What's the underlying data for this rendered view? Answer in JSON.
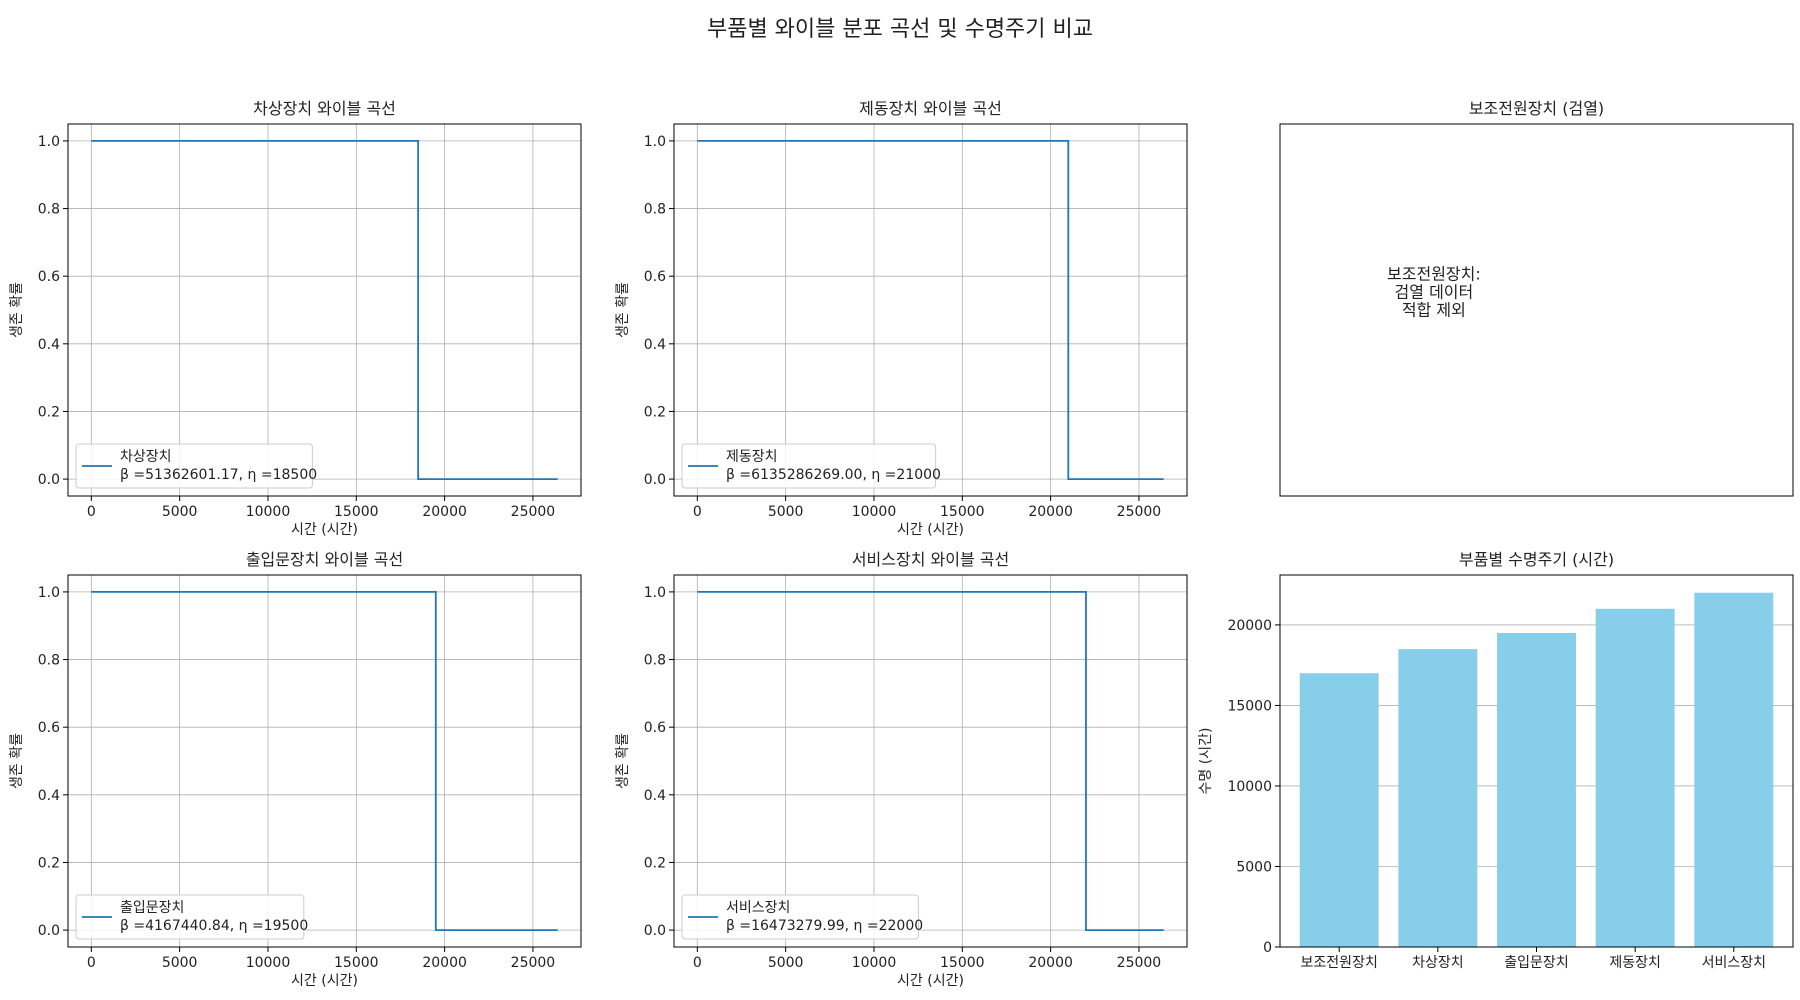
{
  "suptitle": "부품별 와이블 분포 곡선 및 수명주기 비교",
  "colors": {
    "line": "#1f77b4",
    "bar": "#87ceeb",
    "grid": "#b0b0b0",
    "axis": "#000000"
  },
  "chart_data": [
    {
      "type": "line",
      "id": "p1",
      "title": "차상장치 와이블 곡선",
      "xlabel": "시간 (시간)",
      "ylabel": "생존 확률",
      "xlim": [
        -1320,
        27720
      ],
      "ylim": [
        -0.05,
        1.05
      ],
      "xticks": [
        0,
        5000,
        10000,
        15000,
        20000,
        25000
      ],
      "yticks": [
        0.0,
        0.2,
        0.4,
        0.6,
        0.8,
        1.0
      ],
      "grid": true,
      "legend_position": "lower-left",
      "series": [
        {
          "name": "차상장치",
          "legend_line2": "β =51362601.17, η =18500",
          "x": [
            0,
            18500,
            18500,
            26400
          ],
          "y": [
            1.0,
            1.0,
            0.0,
            0.0
          ]
        }
      ]
    },
    {
      "type": "line",
      "id": "p2",
      "title": "제동장치 와이블 곡선",
      "xlabel": "시간 (시간)",
      "ylabel": "생존 확률",
      "xlim": [
        -1320,
        27720
      ],
      "ylim": [
        -0.05,
        1.05
      ],
      "xticks": [
        0,
        5000,
        10000,
        15000,
        20000,
        25000
      ],
      "yticks": [
        0.0,
        0.2,
        0.4,
        0.6,
        0.8,
        1.0
      ],
      "grid": true,
      "legend_position": "lower-left",
      "series": [
        {
          "name": "제동장치",
          "legend_line2": "β =6135286269.00, η =21000",
          "x": [
            0,
            21000,
            21000,
            26400
          ],
          "y": [
            1.0,
            1.0,
            0.0,
            0.0
          ]
        }
      ]
    },
    {
      "type": "text",
      "id": "p3",
      "title": "보조전원장치 (검열)",
      "note_lines": [
        "보조전원장치:",
        "검열 데이터",
        "적합 제외"
      ]
    },
    {
      "type": "line",
      "id": "p4",
      "title": "출입문장치 와이블 곡선",
      "xlabel": "시간 (시간)",
      "ylabel": "생존 확률",
      "xlim": [
        -1320,
        27720
      ],
      "ylim": [
        -0.05,
        1.05
      ],
      "xticks": [
        0,
        5000,
        10000,
        15000,
        20000,
        25000
      ],
      "yticks": [
        0.0,
        0.2,
        0.4,
        0.6,
        0.8,
        1.0
      ],
      "grid": true,
      "legend_position": "lower-left",
      "series": [
        {
          "name": "출입문장치",
          "legend_line2": "β =4167440.84, η =19500",
          "x": [
            0,
            19500,
            19500,
            26400
          ],
          "y": [
            1.0,
            1.0,
            0.0,
            0.0
          ]
        }
      ]
    },
    {
      "type": "line",
      "id": "p5",
      "title": "서비스장치 와이블 곡선",
      "xlabel": "시간 (시간)",
      "ylabel": "생존 확률",
      "xlim": [
        -1320,
        27720
      ],
      "ylim": [
        -0.05,
        1.05
      ],
      "xticks": [
        0,
        5000,
        10000,
        15000,
        20000,
        25000
      ],
      "yticks": [
        0.0,
        0.2,
        0.4,
        0.6,
        0.8,
        1.0
      ],
      "grid": true,
      "legend_position": "lower-left",
      "series": [
        {
          "name": "서비스장치",
          "legend_line2": "β =16473279.99, η =22000",
          "x": [
            0,
            22000,
            22000,
            26400
          ],
          "y": [
            1.0,
            1.0,
            0.0,
            0.0
          ]
        }
      ]
    },
    {
      "type": "bar",
      "id": "p6",
      "title": "부품별 수명주기 (시간)",
      "ylabel": "수명 (시간)",
      "categories": [
        "보조전원장치",
        "차상장치",
        "출입문장치",
        "제동장치",
        "서비스장치"
      ],
      "values": [
        17000,
        18500,
        19500,
        21000,
        22000
      ],
      "ylim": [
        0,
        23100
      ],
      "yticks": [
        0,
        5000,
        10000,
        15000,
        20000
      ],
      "grid": true,
      "grid_axis": "y"
    }
  ]
}
